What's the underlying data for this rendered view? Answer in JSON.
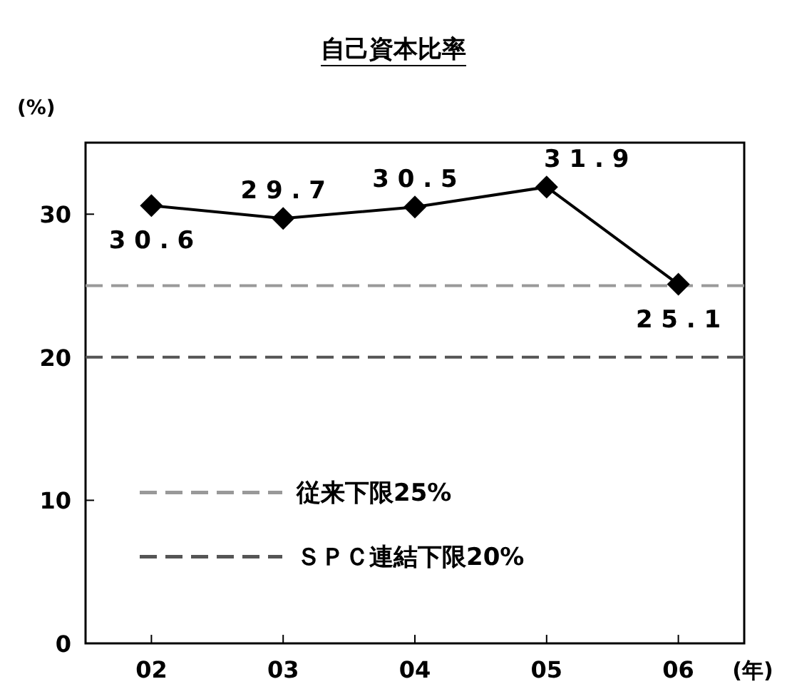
{
  "chart_data": {
    "type": "line",
    "title": "自己資本比率",
    "ylabel": "(%)",
    "xlabel": "(年)",
    "categories": [
      "02",
      "03",
      "04",
      "05",
      "06"
    ],
    "series": [
      {
        "color": "#000000",
        "values": [
          30.6,
          29.7,
          30.5,
          31.9,
          25.1
        ]
      }
    ],
    "ylim": [
      0,
      35
    ],
    "yticks": [
      0,
      10,
      20,
      30
    ],
    "marker": "diamond",
    "line_style": "solid",
    "data_labels": true,
    "grid": false,
    "legend": "bottom left",
    "ref_lines": [
      {
        "axis": "y",
        "value": 25,
        "label": "従来下限25%",
        "color": "#999999",
        "line_style": "dashed"
      },
      {
        "axis": "y",
        "value": 20,
        "label": "ＳＰＣ連結下限20%",
        "color": "#555555",
        "line_style": "dashed"
      }
    ]
  }
}
